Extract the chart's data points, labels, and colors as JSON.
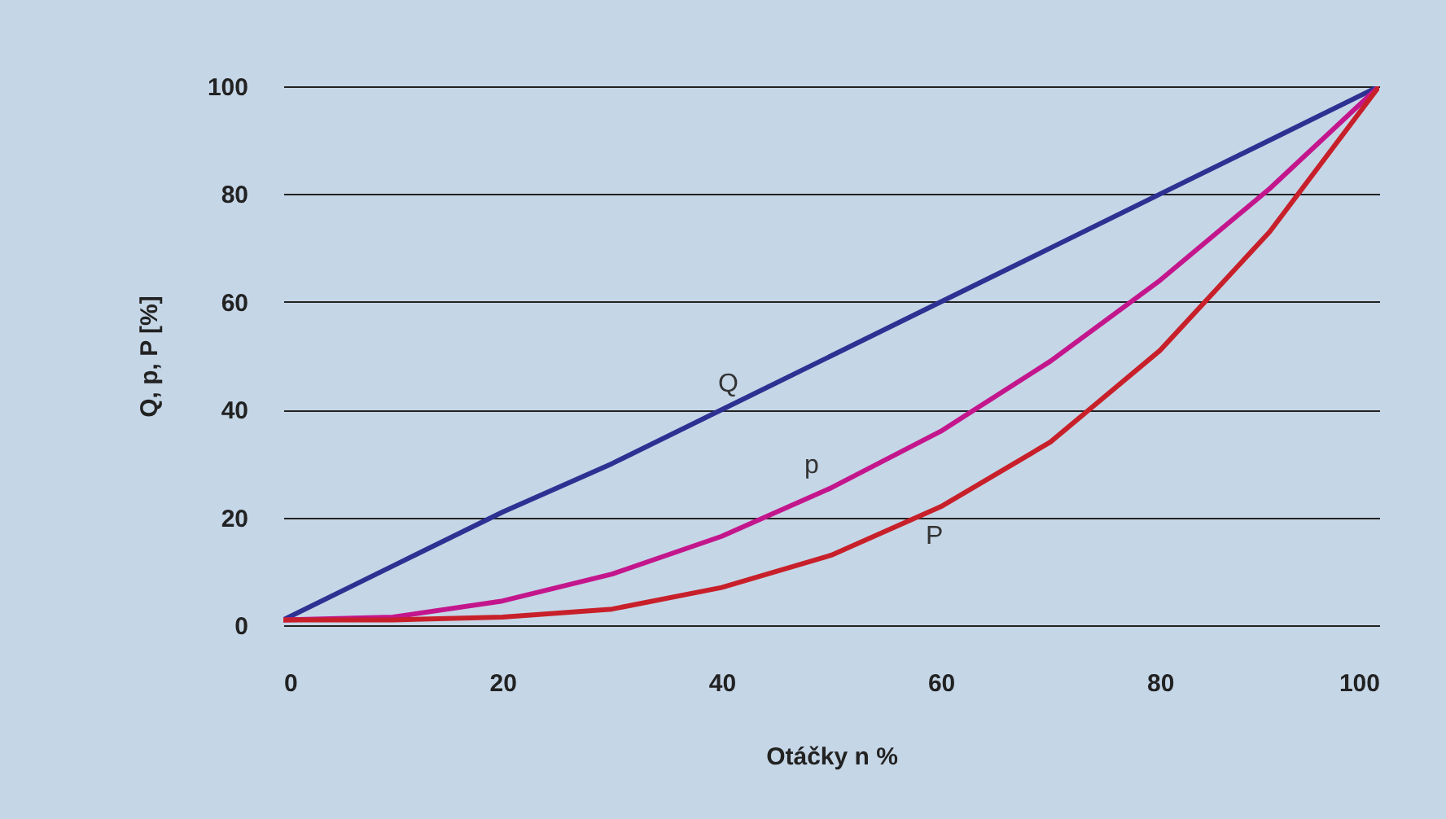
{
  "chart_data": {
    "type": "line",
    "xlabel": "Otáčky n %",
    "ylabel": "Q, p, P [%]",
    "x": [
      0,
      10,
      20,
      30,
      40,
      50,
      60,
      70,
      80,
      90,
      100
    ],
    "series": [
      {
        "name": "Q",
        "color": "#2e3192",
        "values": [
          1,
          11,
          21,
          30,
          40,
          50,
          60,
          70,
          80,
          90,
          100
        ]
      },
      {
        "name": "p",
        "color": "#c4168c",
        "values": [
          1,
          1.5,
          4.5,
          9.5,
          16.5,
          25.5,
          36,
          49,
          64,
          81,
          100
        ]
      },
      {
        "name": "P",
        "color": "#c8202a",
        "values": [
          1,
          1,
          1.5,
          3,
          7,
          13,
          22,
          34,
          51,
          73,
          100
        ]
      }
    ],
    "xlim": [
      0,
      100
    ],
    "xticks": [
      0,
      20,
      40,
      60,
      80,
      100
    ],
    "ylim": [
      0,
      100
    ],
    "yticks": [
      0,
      20,
      40,
      60,
      80,
      100
    ],
    "grid": "y"
  }
}
